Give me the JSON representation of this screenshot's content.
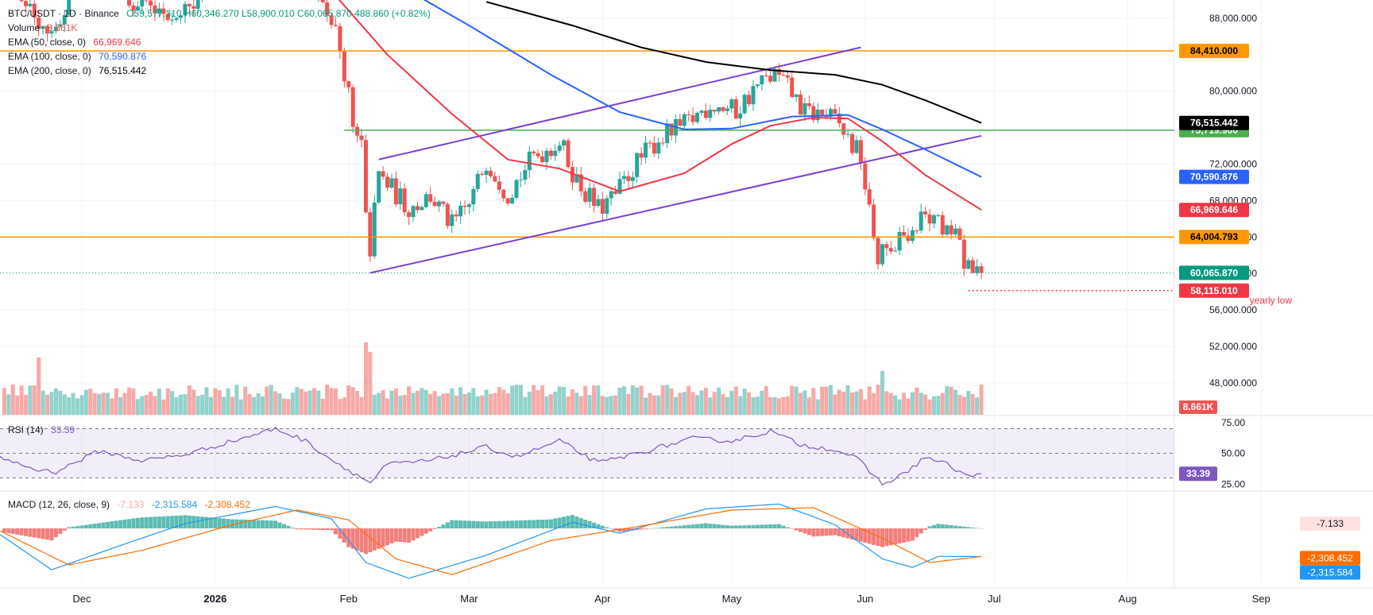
{
  "colors": {
    "up": "#26a69a",
    "down": "#ef5350",
    "ema50": "#f23645",
    "ema100": "#2962ff",
    "ema200": "#000000",
    "orange_line": "#ff9800",
    "green_line": "#4caf50",
    "trend": "#7b3fd1",
    "rsi": "#7e57c2",
    "macd": "#2196f3",
    "signal": "#ff6d00",
    "grid": "#f0f3fa",
    "axis_text": "#131722"
  },
  "legend": {
    "symbol": "BTC/USDT · 1D · Binance",
    "ohlc": "O59,577.310  H60,346.270  L58,900.010  C60,065.870  488.860 (+0.82%)",
    "volume_label": "Volume",
    "volume_value": "8.661K",
    "ema50_label": "EMA (50, close, 0)",
    "ema50_value": "66,969.646",
    "ema100_label": "EMA (100, close, 0)",
    "ema100_value": "70,590.876",
    "ema200_label": "EMA (200, close, 0)",
    "ema200_value": "76,515.442"
  },
  "rsi_legend": {
    "label": "RSI (14)",
    "value": "33.39"
  },
  "macd_legend": {
    "label": "MACD (12, 26, close, 9)",
    "hist": "-7.133",
    "macd": "-2,315.584",
    "signal": "-2,308.452"
  },
  "annotation": {
    "yearly_low": "yearly low"
  },
  "chart_data": {
    "type": "candlestick",
    "price_axis": {
      "ylim": [
        44500,
        90000
      ],
      "ticks": [
        48000,
        52000,
        56000,
        60000,
        64000,
        68000,
        72000,
        80000,
        88000
      ]
    },
    "time_axis": {
      "start": "2025-11-12",
      "end": "2026-09-27",
      "labels": [
        {
          "date": "2025-12-01",
          "text": "Dec",
          "bold": false
        },
        {
          "date": "2026-01-01",
          "text": "2026",
          "bold": true
        },
        {
          "date": "2026-02-01",
          "text": "Feb",
          "bold": false
        },
        {
          "date": "2026-03-01",
          "text": "Mar",
          "bold": false
        },
        {
          "date": "2026-04-01",
          "text": "Apr",
          "bold": false
        },
        {
          "date": "2026-05-01",
          "text": "May",
          "bold": false
        },
        {
          "date": "2026-06-01",
          "text": "Jun",
          "bold": false
        },
        {
          "date": "2026-07-01",
          "text": "Jul",
          "bold": false
        },
        {
          "date": "2026-08-01",
          "text": "Aug",
          "bold": false
        },
        {
          "date": "2026-09-01",
          "text": "Sep",
          "bold": false
        }
      ]
    },
    "price_path": [
      {
        "date": "2025-11-12",
        "close": 94500
      },
      {
        "date": "2025-11-20",
        "close": 88500
      },
      {
        "date": "2025-11-24",
        "close": 86500
      },
      {
        "date": "2025-12-01",
        "close": 92800
      },
      {
        "date": "2025-12-10",
        "close": 91200
      },
      {
        "date": "2025-12-18",
        "close": 88200
      },
      {
        "date": "2025-12-25",
        "close": 89500
      },
      {
        "date": "2026-01-05",
        "close": 93800
      },
      {
        "date": "2026-01-15",
        "close": 96200
      },
      {
        "date": "2026-01-26",
        "close": 90500
      },
      {
        "date": "2026-01-29",
        "close": 86000
      },
      {
        "date": "2026-01-31",
        "close": 81500
      },
      {
        "date": "2026-02-02",
        "close": 77200
      },
      {
        "date": "2026-02-04",
        "close": 73500
      },
      {
        "date": "2026-02-05",
        "close": 66800
      },
      {
        "date": "2026-02-06",
        "close": 62800
      },
      {
        "date": "2026-02-08",
        "close": 70800
      },
      {
        "date": "2026-02-15",
        "close": 67200
      },
      {
        "date": "2026-02-20",
        "close": 68500
      },
      {
        "date": "2026-02-25",
        "close": 65200
      },
      {
        "date": "2026-03-01",
        "close": 67500
      },
      {
        "date": "2026-03-05",
        "close": 72500
      },
      {
        "date": "2026-03-10",
        "close": 68800
      },
      {
        "date": "2026-03-16",
        "close": 72800
      },
      {
        "date": "2026-03-22",
        "close": 74500
      },
      {
        "date": "2026-03-26",
        "close": 70200
      },
      {
        "date": "2026-03-31",
        "close": 67000
      },
      {
        "date": "2026-04-04",
        "close": 68500
      },
      {
        "date": "2026-04-08",
        "close": 71600
      },
      {
        "date": "2026-04-14",
        "close": 74800
      },
      {
        "date": "2026-04-20",
        "close": 76200
      },
      {
        "date": "2026-04-26",
        "close": 78600
      },
      {
        "date": "2026-05-02",
        "close": 77800
      },
      {
        "date": "2026-05-07",
        "close": 80600
      },
      {
        "date": "2026-05-11",
        "close": 81800
      },
      {
        "date": "2026-05-14",
        "close": 80400
      },
      {
        "date": "2026-05-18",
        "close": 77600
      },
      {
        "date": "2026-05-23",
        "close": 77400
      },
      {
        "date": "2026-05-26",
        "close": 76200
      },
      {
        "date": "2026-05-29",
        "close": 74000
      },
      {
        "date": "2026-05-31",
        "close": 72800
      },
      {
        "date": "2026-06-02",
        "close": 66500
      },
      {
        "date": "2026-06-04",
        "close": 61800
      },
      {
        "date": "2026-06-06",
        "close": 62600
      },
      {
        "date": "2026-06-08",
        "close": 63600
      },
      {
        "date": "2026-06-12",
        "close": 64800
      },
      {
        "date": "2026-06-15",
        "close": 66500
      },
      {
        "date": "2026-06-19",
        "close": 64800
      },
      {
        "date": "2026-06-22",
        "close": 64200
      },
      {
        "date": "2026-06-25",
        "close": 60200
      },
      {
        "date": "2026-06-28",
        "close": 60065.87
      }
    ],
    "ema50": [
      {
        "date": "2026-01-28",
        "value": 91000
      },
      {
        "date": "2026-02-10",
        "value": 84000
      },
      {
        "date": "2026-02-25",
        "value": 77500
      },
      {
        "date": "2026-03-10",
        "value": 72500
      },
      {
        "date": "2026-03-22",
        "value": 71500
      },
      {
        "date": "2026-04-05",
        "value": 69000
      },
      {
        "date": "2026-04-20",
        "value": 71000
      },
      {
        "date": "2026-05-01",
        "value": 74200
      },
      {
        "date": "2026-05-10",
        "value": 76200
      },
      {
        "date": "2026-05-20",
        "value": 77100
      },
      {
        "date": "2026-05-28",
        "value": 77000
      },
      {
        "date": "2026-06-05",
        "value": 74500
      },
      {
        "date": "2026-06-15",
        "value": 70800
      },
      {
        "date": "2026-06-28",
        "value": 66969.646
      }
    ],
    "ema100": [
      {
        "date": "2026-02-15",
        "value": 91000
      },
      {
        "date": "2026-03-01",
        "value": 87200
      },
      {
        "date": "2026-03-20",
        "value": 81800
      },
      {
        "date": "2026-04-05",
        "value": 77700
      },
      {
        "date": "2026-04-20",
        "value": 75800
      },
      {
        "date": "2026-05-01",
        "value": 75900
      },
      {
        "date": "2026-05-15",
        "value": 77200
      },
      {
        "date": "2026-05-28",
        "value": 77400
      },
      {
        "date": "2026-06-05",
        "value": 75800
      },
      {
        "date": "2026-06-15",
        "value": 73600
      },
      {
        "date": "2026-06-28",
        "value": 70590.876
      }
    ],
    "ema200": [
      {
        "date": "2026-03-05",
        "value": 89800
      },
      {
        "date": "2026-03-25",
        "value": 87200
      },
      {
        "date": "2026-04-10",
        "value": 84800
      },
      {
        "date": "2026-04-25",
        "value": 83200
      },
      {
        "date": "2026-05-10",
        "value": 82300
      },
      {
        "date": "2026-05-25",
        "value": 81800
      },
      {
        "date": "2026-06-05",
        "value": 80700
      },
      {
        "date": "2026-06-15",
        "value": 79000
      },
      {
        "date": "2026-06-28",
        "value": 76515.442
      }
    ],
    "horizontal_levels": [
      {
        "price": 84410,
        "label": "84,410.000",
        "kind": "orange",
        "from": "2025-11-12"
      },
      {
        "price": 75719.9,
        "label": "75,719.900",
        "kind": "green",
        "from": "2026-01-31"
      },
      {
        "price": 64004.793,
        "label": "64,004.793",
        "kind": "orange",
        "from": "2025-11-12"
      }
    ],
    "last_price": {
      "price": 60065.87,
      "label": "60,065.870"
    },
    "yearly_low": {
      "price": 58115.01,
      "label": "58,115.010",
      "from": "2026-06-25"
    },
    "channel": [
      {
        "from": {
          "date": "2026-02-08",
          "price": 72500
        },
        "to": {
          "date": "2026-05-31",
          "price": 84800
        }
      },
      {
        "from": {
          "date": "2026-02-06",
          "price": 60065.87
        },
        "to": {
          "date": "2026-06-28",
          "price": 75100
        }
      }
    ],
    "price_labels": [
      {
        "price": 76515.442,
        "label": "76,515.442",
        "kind": "ema200"
      },
      {
        "price": 70590.876,
        "label": "70,590.876",
        "kind": "ema100"
      },
      {
        "price": 66969.646,
        "label": "66,969.646",
        "kind": "ema50"
      }
    ],
    "volume": {
      "last_label": "8.661K",
      "spikes": [
        {
          "date": "2025-11-21",
          "value": 3.0
        },
        {
          "date": "2026-02-05",
          "value": 3.8
        },
        {
          "date": "2026-02-06",
          "value": 3.3
        },
        {
          "date": "2026-06-05",
          "value": 2.3
        }
      ]
    },
    "rsi": {
      "ylim": [
        20,
        80
      ],
      "levels": [
        70,
        50,
        30
      ],
      "ticks": [
        75,
        50,
        25
      ],
      "last": 33.39,
      "path": [
        {
          "date": "2025-11-12",
          "value": 47
        },
        {
          "date": "2025-11-20",
          "value": 37
        },
        {
          "date": "2025-11-25",
          "value": 35
        },
        {
          "date": "2025-12-05",
          "value": 52
        },
        {
          "date": "2025-12-15",
          "value": 44
        },
        {
          "date": "2025-12-25",
          "value": 49
        },
        {
          "date": "2026-01-05",
          "value": 60
        },
        {
          "date": "2026-01-15",
          "value": 70
        },
        {
          "date": "2026-01-22",
          "value": 60
        },
        {
          "date": "2026-01-28",
          "value": 45
        },
        {
          "date": "2026-02-06",
          "value": 26
        },
        {
          "date": "2026-02-10",
          "value": 41
        },
        {
          "date": "2026-02-20",
          "value": 44
        },
        {
          "date": "2026-03-05",
          "value": 55
        },
        {
          "date": "2026-03-12",
          "value": 47
        },
        {
          "date": "2026-03-22",
          "value": 60
        },
        {
          "date": "2026-03-31",
          "value": 42
        },
        {
          "date": "2026-04-10",
          "value": 51
        },
        {
          "date": "2026-04-22",
          "value": 62
        },
        {
          "date": "2026-05-01",
          "value": 60
        },
        {
          "date": "2026-05-10",
          "value": 68
        },
        {
          "date": "2026-05-17",
          "value": 57
        },
        {
          "date": "2026-05-25",
          "value": 53
        },
        {
          "date": "2026-05-30",
          "value": 46
        },
        {
          "date": "2026-06-05",
          "value": 25
        },
        {
          "date": "2026-06-10",
          "value": 33
        },
        {
          "date": "2026-06-15",
          "value": 47
        },
        {
          "date": "2026-06-20",
          "value": 41
        },
        {
          "date": "2026-06-25",
          "value": 31
        },
        {
          "date": "2026-06-28",
          "value": 33.39
        }
      ]
    },
    "macd": {
      "ylim": [
        -4500,
        3000
      ],
      "macd_path": [
        {
          "date": "2025-11-12",
          "value": -500
        },
        {
          "date": "2025-11-24",
          "value": -3400
        },
        {
          "date": "2025-12-10",
          "value": -1400
        },
        {
          "date": "2025-12-25",
          "value": 400
        },
        {
          "date": "2026-01-15",
          "value": 1800
        },
        {
          "date": "2026-01-28",
          "value": 800
        },
        {
          "date": "2026-02-05",
          "value": -2800
        },
        {
          "date": "2026-02-15",
          "value": -4100
        },
        {
          "date": "2026-03-05",
          "value": -2200
        },
        {
          "date": "2026-03-25",
          "value": 500
        },
        {
          "date": "2026-04-05",
          "value": -400
        },
        {
          "date": "2026-04-25",
          "value": 1600
        },
        {
          "date": "2026-05-12",
          "value": 2000
        },
        {
          "date": "2026-05-25",
          "value": 300
        },
        {
          "date": "2026-06-05",
          "value": -2500
        },
        {
          "date": "2026-06-12",
          "value": -3200
        },
        {
          "date": "2026-06-18",
          "value": -2300
        },
        {
          "date": "2026-06-28",
          "value": -2315.584
        }
      ],
      "signal_path": [
        {
          "date": "2025-11-12",
          "value": -200
        },
        {
          "date": "2025-11-28",
          "value": -3000
        },
        {
          "date": "2025-12-15",
          "value": -1800
        },
        {
          "date": "2026-01-05",
          "value": 300
        },
        {
          "date": "2026-01-20",
          "value": 1500
        },
        {
          "date": "2026-02-01",
          "value": 700
        },
        {
          "date": "2026-02-12",
          "value": -2500
        },
        {
          "date": "2026-02-25",
          "value": -3800
        },
        {
          "date": "2026-03-20",
          "value": -1000
        },
        {
          "date": "2026-04-10",
          "value": 200
        },
        {
          "date": "2026-05-01",
          "value": 1500
        },
        {
          "date": "2026-05-20",
          "value": 1700
        },
        {
          "date": "2026-06-05",
          "value": -800
        },
        {
          "date": "2026-06-16",
          "value": -2800
        },
        {
          "date": "2026-06-28",
          "value": -2308.452
        }
      ],
      "hist_last": -7.133
    }
  }
}
